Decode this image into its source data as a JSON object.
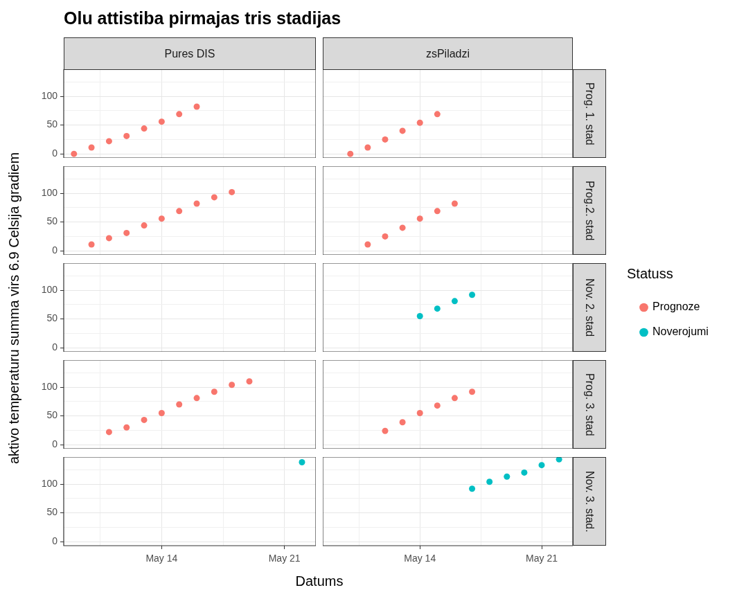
{
  "chart_data": [
    {
      "type": "scatter",
      "title": "Olu attistiba pirmajas tris stadijas",
      "subtitle": "Pures DIS",
      "ylabel": "aktivo temperaturu summa virs 6.9 Celsija gradiem",
      "xlim": [
        "--05-08T10:00",
        "--05-22T19:00"
      ],
      "xticks": [
        {
          "value": "--05-10T12:00",
          "label": null
        },
        {
          "value": "--05-14",
          "label": "May 14"
        },
        {
          "value": "--05-17T12:00",
          "label": null
        },
        {
          "value": "--05-21",
          "label": "May 21"
        }
      ],
      "ylim": [
        -7,
        147
      ],
      "yticks": [
        0,
        {
          "value": 25,
          "label": null
        },
        50,
        {
          "value": 75,
          "label": null
        },
        100,
        {
          "value": 125,
          "label": null
        }
      ],
      "grid": true,
      "marker": "circle",
      "tick_labels": "y",
      "series": [
        {
          "color": "#f8766d",
          "x": [
            "--05-09",
            "--05-10",
            "--05-11",
            "--05-12",
            "--05-13",
            "--05-14",
            "--05-15",
            "--05-16"
          ],
          "values": [
            0,
            11,
            22,
            31,
            44,
            56,
            69,
            82
          ]
        }
      ]
    },
    {
      "type": "scatter",
      "subtitle": "zsPiladzi",
      "annotations": [
        "Prog. 1. stad"
      ],
      "xlim": [
        "--05-08T10:00",
        "--05-22T19:00"
      ],
      "xticks": [
        {
          "value": "--05-10T12:00",
          "label": null
        },
        {
          "value": "--05-14",
          "label": "May 14"
        },
        {
          "value": "--05-17T12:00",
          "label": null
        },
        {
          "value": "--05-21",
          "label": "May 21"
        }
      ],
      "ylim": [
        -7,
        147
      ],
      "yticks": [
        0,
        {
          "value": 25,
          "label": null
        },
        50,
        {
          "value": 75,
          "label": null
        },
        100,
        {
          "value": 125,
          "label": null
        }
      ],
      "grid": true,
      "marker": "circle",
      "tick_labels": false,
      "series": [
        {
          "color": "#f8766d",
          "x": [
            "--05-10",
            "--05-11",
            "--05-12",
            "--05-13",
            "--05-14",
            "--05-15"
          ],
          "values": [
            0,
            11,
            25,
            40,
            54,
            69
          ]
        }
      ]
    },
    {
      "type": "scatter",
      "xlim": [
        "--05-08T10:00",
        "--05-22T19:00"
      ],
      "xticks": [
        {
          "value": "--05-10T12:00",
          "label": null
        },
        {
          "value": "--05-14",
          "label": "May 14"
        },
        {
          "value": "--05-17T12:00",
          "label": null
        },
        {
          "value": "--05-21",
          "label": "May 21"
        }
      ],
      "ylim": [
        -7,
        147
      ],
      "yticks": [
        0,
        {
          "value": 25,
          "label": null
        },
        50,
        {
          "value": 75,
          "label": null
        },
        100,
        {
          "value": 125,
          "label": null
        }
      ],
      "grid": true,
      "marker": "circle",
      "tick_labels": "y",
      "series": [
        {
          "color": "#f8766d",
          "x": [
            "--05-10",
            "--05-11",
            "--05-12",
            "--05-13",
            "--05-14",
            "--05-15",
            "--05-16",
            "--05-17",
            "--05-18"
          ],
          "values": [
            11,
            22,
            31,
            44,
            56,
            69,
            82,
            93,
            102
          ]
        }
      ]
    },
    {
      "type": "scatter",
      "annotations": [
        "Prog.2. stad"
      ],
      "xlim": [
        "--05-08T10:00",
        "--05-22T19:00"
      ],
      "xticks": [
        {
          "value": "--05-10T12:00",
          "label": null
        },
        {
          "value": "--05-14",
          "label": "May 14"
        },
        {
          "value": "--05-17T12:00",
          "label": null
        },
        {
          "value": "--05-21",
          "label": "May 21"
        }
      ],
      "ylim": [
        -7,
        147
      ],
      "yticks": [
        0,
        {
          "value": 25,
          "label": null
        },
        50,
        {
          "value": 75,
          "label": null
        },
        100,
        {
          "value": 125,
          "label": null
        }
      ],
      "grid": true,
      "marker": "circle",
      "tick_labels": false,
      "series": [
        {
          "color": "#f8766d",
          "x": [
            "--05-11",
            "--05-12",
            "--05-13",
            "--05-14",
            "--05-15",
            "--05-16"
          ],
          "values": [
            11,
            25,
            40,
            56,
            69,
            82
          ]
        }
      ]
    },
    {
      "type": "scatter",
      "xlim": [
        "--05-08T10:00",
        "--05-22T19:00"
      ],
      "xticks": [
        {
          "value": "--05-10T12:00",
          "label": null
        },
        {
          "value": "--05-14",
          "label": "May 14"
        },
        {
          "value": "--05-17T12:00",
          "label": null
        },
        {
          "value": "--05-21",
          "label": "May 21"
        }
      ],
      "ylim": [
        -7,
        147
      ],
      "yticks": [
        0,
        {
          "value": 25,
          "label": null
        },
        50,
        {
          "value": 75,
          "label": null
        },
        100,
        {
          "value": 125,
          "label": null
        }
      ],
      "grid": true,
      "tick_labels": "y"
    },
    {
      "type": "scatter",
      "annotations": [
        "Nov. 2. stad"
      ],
      "legend": "right",
      "legend_title": "Statuss",
      "xlim": [
        "--05-08T10:00",
        "--05-22T19:00"
      ],
      "xticks": [
        {
          "value": "--05-10T12:00",
          "label": null
        },
        {
          "value": "--05-14",
          "label": "May 14"
        },
        {
          "value": "--05-17T12:00",
          "label": null
        },
        {
          "value": "--05-21",
          "label": "May 21"
        }
      ],
      "ylim": [
        -7,
        147
      ],
      "yticks": [
        0,
        {
          "value": 25,
          "label": null
        },
        50,
        {
          "value": 75,
          "label": null
        },
        100,
        {
          "value": 125,
          "label": null
        }
      ],
      "grid": true,
      "marker": "circle",
      "tick_labels": false,
      "series": [
        {
          "name": "Prognoze",
          "color": "#f8766d"
        },
        {
          "name": "Noverojumi",
          "color": "#00bfc4",
          "x": [
            "--05-14",
            "--05-15",
            "--05-16",
            "--05-17"
          ],
          "values": [
            55,
            68,
            81,
            92
          ]
        }
      ]
    },
    {
      "type": "scatter",
      "xlim": [
        "--05-08T10:00",
        "--05-22T19:00"
      ],
      "xticks": [
        {
          "value": "--05-10T12:00",
          "label": null
        },
        {
          "value": "--05-14",
          "label": "May 14"
        },
        {
          "value": "--05-17T12:00",
          "label": null
        },
        {
          "value": "--05-21",
          "label": "May 21"
        }
      ],
      "ylim": [
        -7,
        147
      ],
      "yticks": [
        0,
        {
          "value": 25,
          "label": null
        },
        50,
        {
          "value": 75,
          "label": null
        },
        100,
        {
          "value": 125,
          "label": null
        }
      ],
      "grid": true,
      "marker": "circle",
      "tick_labels": "y",
      "series": [
        {
          "color": "#f8766d",
          "x": [
            "--05-11",
            "--05-12",
            "--05-13",
            "--05-14",
            "--05-15",
            "--05-16",
            "--05-17",
            "--05-18",
            "--05-19"
          ],
          "values": [
            22,
            30,
            43,
            55,
            70,
            81,
            92,
            104,
            110
          ]
        }
      ]
    },
    {
      "type": "scatter",
      "annotations": [
        "Prog. 3. stad"
      ],
      "xlim": [
        "--05-08T10:00",
        "--05-22T19:00"
      ],
      "xticks": [
        {
          "value": "--05-10T12:00",
          "label": null
        },
        {
          "value": "--05-14",
          "label": "May 14"
        },
        {
          "value": "--05-17T12:00",
          "label": null
        },
        {
          "value": "--05-21",
          "label": "May 21"
        }
      ],
      "ylim": [
        -7,
        147
      ],
      "yticks": [
        0,
        {
          "value": 25,
          "label": null
        },
        50,
        {
          "value": 75,
          "label": null
        },
        100,
        {
          "value": 125,
          "label": null
        }
      ],
      "grid": true,
      "marker": "circle",
      "tick_labels": false,
      "series": [
        {
          "color": "#f8766d",
          "x": [
            "--05-12",
            "--05-13",
            "--05-14",
            "--05-15",
            "--05-16",
            "--05-17"
          ],
          "values": [
            24,
            39,
            55,
            68,
            81,
            92
          ]
        }
      ]
    },
    {
      "type": "scatter",
      "xlabel": "Datums",
      "xlim": [
        "--05-08T10:00",
        "--05-22T19:00"
      ],
      "xticks": [
        {
          "value": "--05-10T12:00",
          "label": null
        },
        {
          "value": "--05-14",
          "label": "May 14"
        },
        {
          "value": "--05-17T12:00",
          "label": null
        },
        {
          "value": "--05-21",
          "label": "May 21"
        }
      ],
      "ylim": [
        -7,
        147
      ],
      "yticks": [
        0,
        {
          "value": 25,
          "label": null
        },
        50,
        {
          "value": 75,
          "label": null
        },
        100,
        {
          "value": 125,
          "label": null
        }
      ],
      "grid": true,
      "marker": "circle",
      "series": [
        {
          "color": "#00bfc4",
          "x": [
            "--05-22"
          ],
          "values": [
            138
          ]
        }
      ]
    },
    {
      "type": "scatter",
      "annotations": [
        "Nov. 3. stad."
      ],
      "xlim": [
        "--05-08T10:00",
        "--05-22T19:00"
      ],
      "xticks": [
        {
          "value": "--05-10T12:00",
          "label": null
        },
        {
          "value": "--05-14",
          "label": "May 14"
        },
        {
          "value": "--05-17T12:00",
          "label": null
        },
        {
          "value": "--05-21",
          "label": "May 21"
        }
      ],
      "ylim": [
        -7,
        147
      ],
      "yticks": [
        0,
        {
          "value": 25,
          "label": null
        },
        50,
        {
          "value": 75,
          "label": null
        },
        100,
        {
          "value": 125,
          "label": null
        }
      ],
      "grid": true,
      "marker": "circle",
      "tick_labels": "x",
      "series": [
        {
          "color": "#00bfc4",
          "x": [
            "--05-17",
            "--05-18",
            "--05-19",
            "--05-20",
            "--05-21",
            "--05-22"
          ],
          "values": [
            92,
            104,
            113,
            120,
            133,
            143
          ]
        }
      ]
    }
  ]
}
